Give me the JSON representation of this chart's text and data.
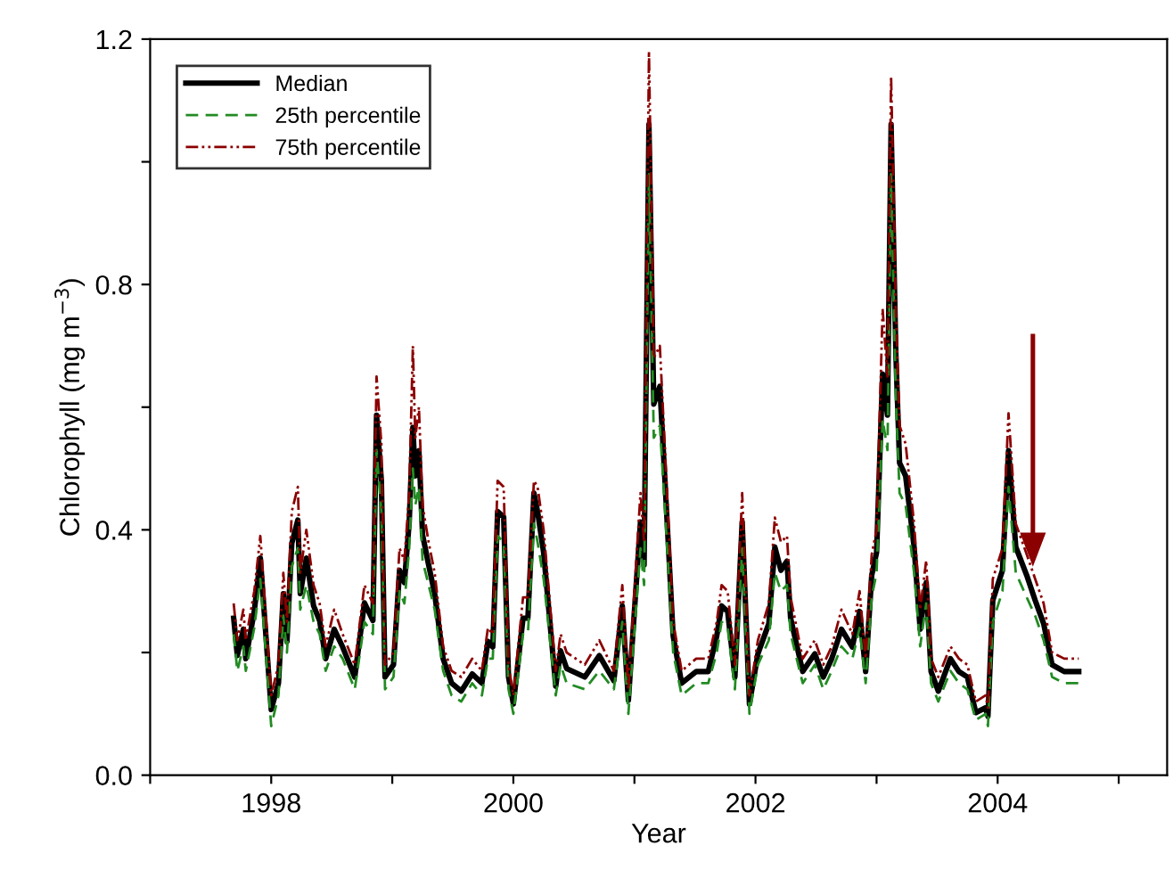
{
  "chart_data": {
    "type": "line",
    "xlabel": "Year",
    "ylabel": "Chlorophyll (mg m$^{−3}$)",
    "x": [
      1997.69,
      1997.72,
      1997.77,
      1997.79,
      1997.86,
      1997.91,
      1998.0,
      1998.06,
      1998.1,
      1998.13,
      1998.17,
      1998.22,
      1998.24,
      1998.29,
      1998.35,
      1998.4,
      1998.45,
      1998.52,
      1998.59,
      1998.69,
      1998.77,
      1998.84,
      1998.87,
      1998.91,
      1998.94,
      1999.01,
      1999.06,
      1999.1,
      1999.14,
      1999.17,
      1999.19,
      1999.22,
      1999.25,
      1999.3,
      1999.35,
      1999.42,
      1999.49,
      1999.57,
      1999.66,
      1999.74,
      1999.79,
      1999.83,
      1999.87,
      1999.92,
      1999.96,
      2000.0,
      2000.08,
      2000.12,
      2000.17,
      2000.2,
      2000.25,
      2000.35,
      2000.39,
      2000.44,
      2000.59,
      2000.71,
      2000.83,
      2000.9,
      2000.95,
      2001.05,
      2001.08,
      2001.12,
      2001.16,
      2001.21,
      2001.25,
      2001.32,
      2001.39,
      2001.51,
      2001.61,
      2001.68,
      2001.72,
      2001.77,
      2001.83,
      2001.89,
      2001.95,
      2002.02,
      2002.11,
      2002.16,
      2002.21,
      2002.26,
      2002.29,
      2002.39,
      2002.49,
      2002.56,
      2002.63,
      2002.71,
      2002.8,
      2002.86,
      2002.91,
      2002.96,
      2003.0,
      2003.05,
      2003.09,
      2003.12,
      2003.16,
      2003.19,
      2003.24,
      2003.31,
      2003.36,
      2003.41,
      2003.45,
      2003.51,
      2003.61,
      2003.68,
      2003.75,
      2003.82,
      2003.9,
      2003.92,
      2003.96,
      2004.04,
      2004.09,
      2004.15,
      2004.24,
      2004.31,
      2004.38,
      2004.45,
      2004.55,
      2004.67
    ],
    "series": [
      {
        "name": "Median",
        "color": "#000000",
        "line_style": "solid",
        "values": [
          0.256,
          0.195,
          0.238,
          0.19,
          0.267,
          0.354,
          0.107,
          0.15,
          0.296,
          0.218,
          0.378,
          0.416,
          0.296,
          0.354,
          0.276,
          0.252,
          0.19,
          0.238,
          0.209,
          0.16,
          0.281,
          0.252,
          0.587,
          0.48,
          0.16,
          0.18,
          0.334,
          0.314,
          0.413,
          0.567,
          0.488,
          0.529,
          0.392,
          0.343,
          0.296,
          0.19,
          0.15,
          0.137,
          0.165,
          0.15,
          0.218,
          0.209,
          0.43,
          0.421,
          0.16,
          0.116,
          0.256,
          0.256,
          0.46,
          0.43,
          0.363,
          0.145,
          0.203,
          0.174,
          0.16,
          0.195,
          0.154,
          0.276,
          0.122,
          0.413,
          0.343,
          1.061,
          0.605,
          0.634,
          0.488,
          0.227,
          0.15,
          0.169,
          0.169,
          0.227,
          0.276,
          0.267,
          0.16,
          0.413,
          0.116,
          0.198,
          0.247,
          0.372,
          0.334,
          0.349,
          0.256,
          0.169,
          0.198,
          0.16,
          0.19,
          0.238,
          0.209,
          0.267,
          0.169,
          0.326,
          0.363,
          0.654,
          0.587,
          1.061,
          0.683,
          0.509,
          0.488,
          0.372,
          0.238,
          0.314,
          0.169,
          0.137,
          0.19,
          0.169,
          0.16,
          0.102,
          0.11,
          0.096,
          0.285,
          0.334,
          0.529,
          0.372,
          0.326,
          0.285,
          0.247,
          0.18,
          0.169,
          0.169
        ]
      },
      {
        "name": "25th percentile",
        "color": "#228b22",
        "line_style": "dashed",
        "values": [
          0.23,
          0.17,
          0.21,
          0.17,
          0.24,
          0.32,
          0.08,
          0.13,
          0.26,
          0.2,
          0.34,
          0.37,
          0.27,
          0.31,
          0.25,
          0.23,
          0.17,
          0.21,
          0.19,
          0.14,
          0.25,
          0.23,
          0.53,
          0.43,
          0.14,
          0.16,
          0.3,
          0.28,
          0.37,
          0.5,
          0.44,
          0.47,
          0.35,
          0.31,
          0.27,
          0.17,
          0.13,
          0.12,
          0.15,
          0.13,
          0.19,
          0.19,
          0.39,
          0.38,
          0.14,
          0.1,
          0.23,
          0.23,
          0.41,
          0.38,
          0.32,
          0.13,
          0.18,
          0.15,
          0.14,
          0.17,
          0.14,
          0.25,
          0.1,
          0.37,
          0.31,
          0.98,
          0.55,
          0.57,
          0.44,
          0.2,
          0.13,
          0.15,
          0.15,
          0.2,
          0.25,
          0.24,
          0.14,
          0.37,
          0.1,
          0.18,
          0.22,
          0.33,
          0.3,
          0.31,
          0.23,
          0.15,
          0.18,
          0.14,
          0.17,
          0.21,
          0.19,
          0.24,
          0.15,
          0.29,
          0.33,
          0.58,
          0.53,
          0.98,
          0.61,
          0.46,
          0.44,
          0.33,
          0.21,
          0.28,
          0.15,
          0.12,
          0.17,
          0.15,
          0.14,
          0.09,
          0.1,
          0.08,
          0.25,
          0.3,
          0.47,
          0.33,
          0.29,
          0.26,
          0.22,
          0.16,
          0.15,
          0.15
        ]
      },
      {
        "name": "75th percentile",
        "color": "#8b0000",
        "line_style": "dotted",
        "values": [
          0.28,
          0.22,
          0.27,
          0.22,
          0.3,
          0.39,
          0.13,
          0.18,
          0.33,
          0.25,
          0.43,
          0.47,
          0.33,
          0.4,
          0.31,
          0.28,
          0.21,
          0.27,
          0.23,
          0.18,
          0.31,
          0.28,
          0.65,
          0.54,
          0.18,
          0.2,
          0.37,
          0.35,
          0.46,
          0.7,
          0.55,
          0.6,
          0.44,
          0.38,
          0.33,
          0.21,
          0.17,
          0.16,
          0.19,
          0.17,
          0.24,
          0.23,
          0.48,
          0.47,
          0.18,
          0.13,
          0.29,
          0.29,
          0.48,
          0.47,
          0.4,
          0.17,
          0.23,
          0.2,
          0.18,
          0.22,
          0.17,
          0.31,
          0.14,
          0.46,
          0.38,
          1.18,
          0.68,
          0.7,
          0.54,
          0.25,
          0.17,
          0.19,
          0.19,
          0.25,
          0.31,
          0.3,
          0.18,
          0.46,
          0.13,
          0.22,
          0.28,
          0.42,
          0.38,
          0.39,
          0.29,
          0.19,
          0.22,
          0.18,
          0.21,
          0.27,
          0.23,
          0.3,
          0.19,
          0.36,
          0.4,
          0.76,
          0.65,
          1.14,
          0.75,
          0.57,
          0.54,
          0.41,
          0.27,
          0.35,
          0.19,
          0.16,
          0.21,
          0.19,
          0.18,
          0.12,
          0.13,
          0.11,
          0.32,
          0.37,
          0.59,
          0.41,
          0.36,
          0.32,
          0.28,
          0.2,
          0.19,
          0.19
        ]
      }
    ],
    "xlim": [
      1997,
      2005.4
    ],
    "xticks": [
      {
        "value": 1997,
        "label": null
      },
      1998,
      {
        "value": 1999,
        "label": null
      },
      2000,
      {
        "value": 2001,
        "label": null
      },
      2002,
      {
        "value": 2003,
        "label": null
      },
      2004,
      {
        "value": 2005,
        "label": null
      }
    ],
    "ylim": [
      0,
      1.2
    ],
    "yticks": [
      {
        "value": 0,
        "label": "0.0"
      },
      {
        "value": 0.2,
        "label": null
      },
      0.4,
      {
        "value": 0.6,
        "label": null
      },
      0.8,
      {
        "value": 1.0,
        "label": null
      },
      1.2
    ],
    "grid": false,
    "legend": "top left"
  }
}
